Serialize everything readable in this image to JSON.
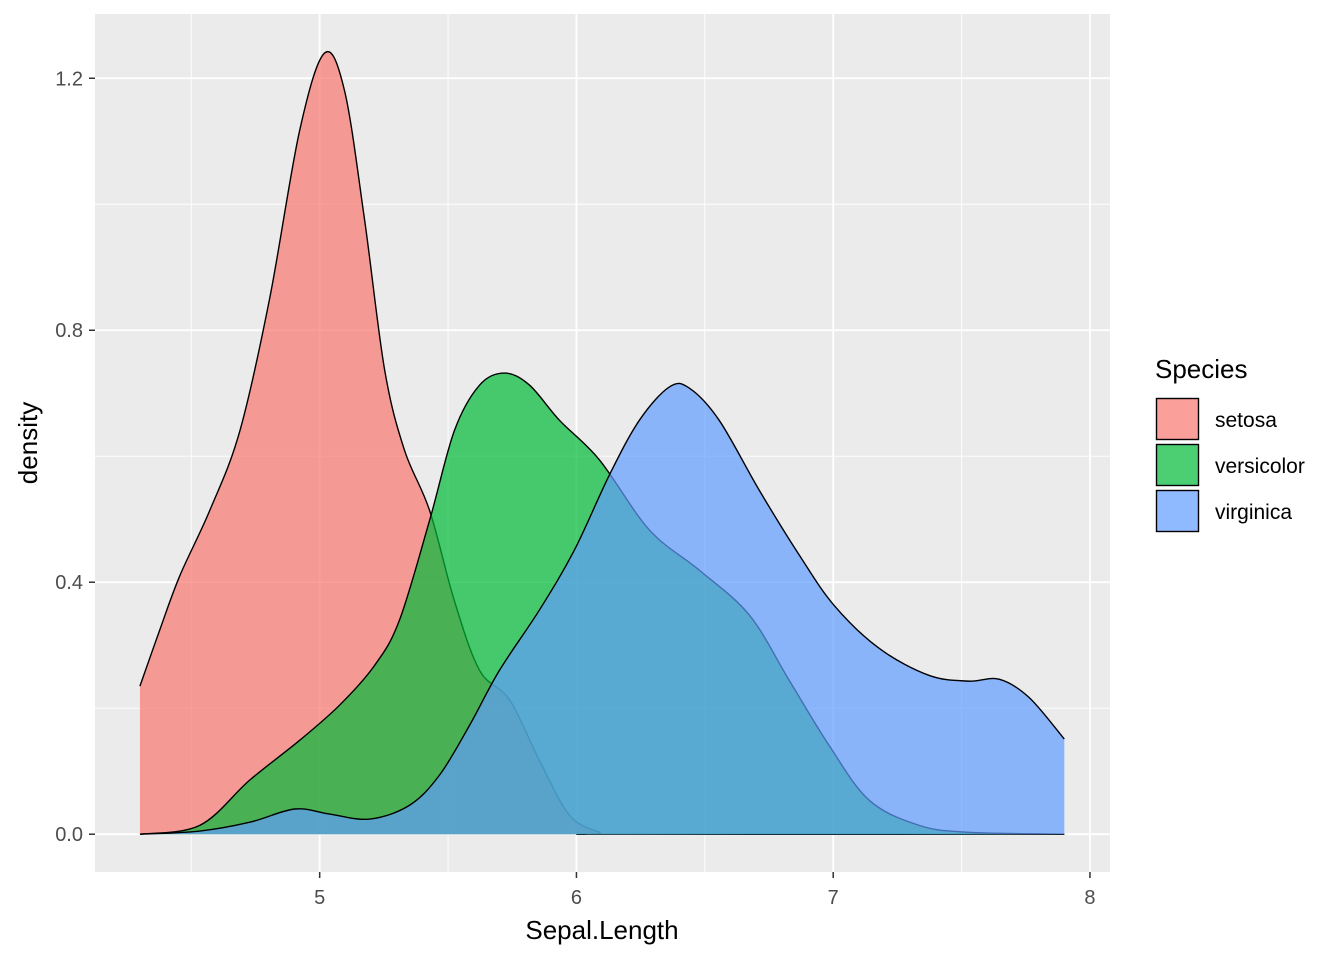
{
  "chart_data": {
    "type": "area",
    "subtype": "density",
    "title": "",
    "xlabel": "Sepal.Length",
    "ylabel": "density",
    "xlim": [
      4.125,
      8.078
    ],
    "ylim": [
      -0.06,
      1.302
    ],
    "x_ticks": [
      5,
      6,
      7,
      8
    ],
    "x_tick_labels": [
      "5",
      "6",
      "7",
      "8"
    ],
    "y_ticks": [
      0.0,
      0.4,
      0.8,
      1.2
    ],
    "y_tick_labels": [
      "0.0",
      "0.4",
      "0.8",
      "1.2"
    ],
    "grid": true,
    "panel_background": "#EBEBEB",
    "fill_alpha": 0.7,
    "legend": {
      "title": "Species",
      "placement": "right"
    },
    "series": [
      {
        "name": "setosa",
        "color": "#F8766D",
        "x": [
          4.3,
          4.377,
          4.455,
          4.572,
          4.689,
          4.805,
          4.922,
          5.019,
          5.097,
          5.175,
          5.253,
          5.33,
          5.428,
          5.525,
          5.623,
          5.74,
          5.856,
          5.973,
          6.09,
          6.144,
          7.9
        ],
        "y": [
          0.235,
          0.324,
          0.41,
          0.514,
          0.64,
          0.85,
          1.117,
          1.24,
          1.18,
          0.975,
          0.737,
          0.61,
          0.514,
          0.37,
          0.26,
          0.213,
          0.117,
          0.03,
          0.003,
          0,
          0
        ]
      },
      {
        "name": "versicolor",
        "color": "#00BA38",
        "x": [
          4.3,
          4.533,
          4.728,
          4.922,
          5.078,
          5.214,
          5.311,
          5.428,
          5.525,
          5.623,
          5.72,
          5.817,
          5.934,
          6.09,
          6.284,
          6.479,
          6.673,
          6.829,
          6.984,
          7.14,
          7.335,
          7.529,
          7.9
        ],
        "y": [
          0,
          0.014,
          0.086,
          0.149,
          0.205,
          0.268,
          0.34,
          0.498,
          0.641,
          0.713,
          0.732,
          0.713,
          0.657,
          0.594,
          0.483,
          0.419,
          0.348,
          0.244,
          0.141,
          0.054,
          0.014,
          0.003,
          0
        ]
      },
      {
        "name": "virginica",
        "color": "#619CFF",
        "x": [
          4.3,
          4.533,
          4.728,
          4.903,
          5.039,
          5.195,
          5.35,
          5.467,
          5.584,
          5.7,
          5.856,
          5.992,
          6.128,
          6.245,
          6.362,
          6.44,
          6.556,
          6.712,
          6.868,
          7.004,
          7.179,
          7.374,
          7.529,
          7.646,
          7.763,
          7.9
        ],
        "y": [
          0,
          0.005,
          0.019,
          0.04,
          0.032,
          0.024,
          0.046,
          0.094,
          0.173,
          0.26,
          0.356,
          0.451,
          0.57,
          0.657,
          0.71,
          0.708,
          0.657,
          0.546,
          0.443,
          0.363,
          0.295,
          0.252,
          0.243,
          0.246,
          0.217,
          0.151
        ]
      }
    ]
  }
}
